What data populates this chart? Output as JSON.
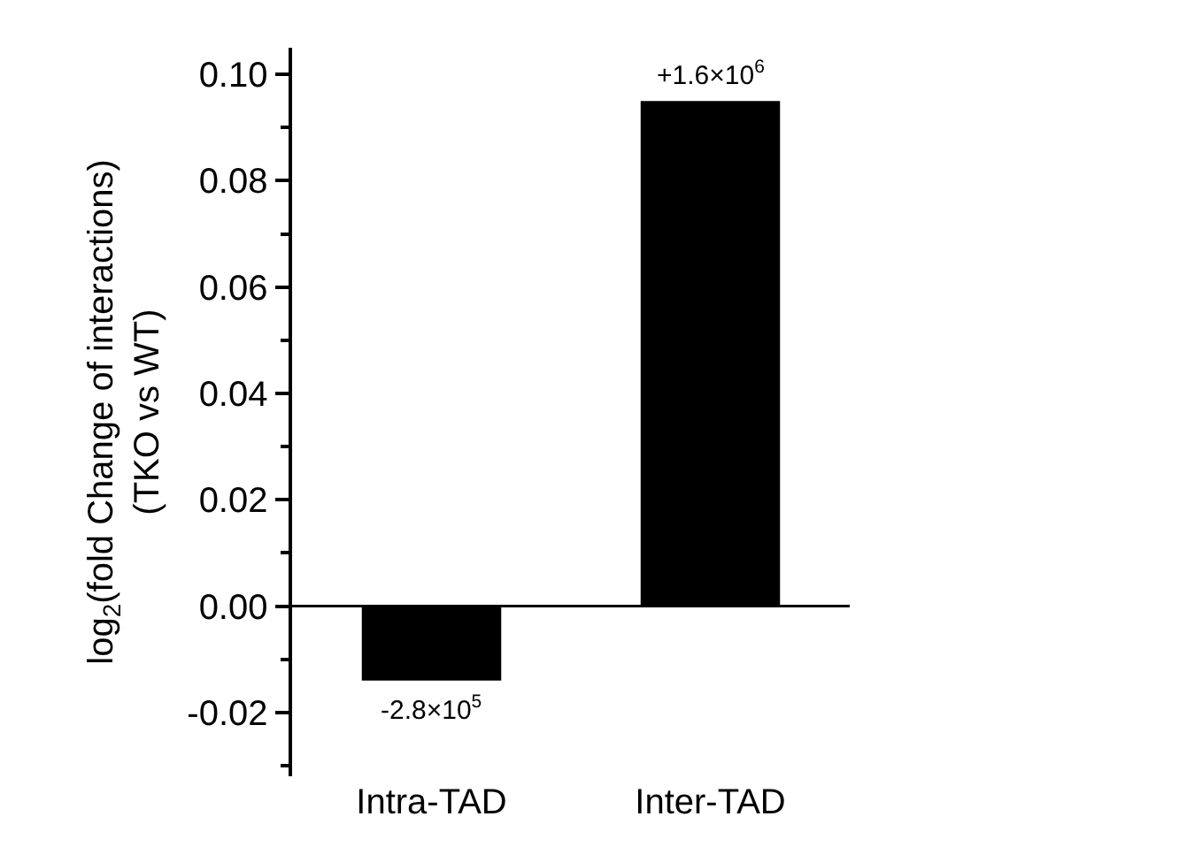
{
  "chart_data": {
    "type": "bar",
    "ylabel": "log$_{2}$(fold Change of interactions)\n(TKO vs WT)",
    "categories": [
      "Intra-TAD",
      "Inter-TAD"
    ],
    "values": [
      -0.014,
      0.095
    ],
    "annotations": [
      {
        "text": "-2.8×10$^{5}$",
        "x": "Intra-TAD",
        "y": -0.014
      },
      {
        "text": "+1.6×10$^{6}$",
        "x": "Inter-TAD",
        "y": 0.095
      }
    ],
    "color": "#000000",
    "ylim": [
      -0.032,
      0.105
    ],
    "yticks": [
      {
        "value": -0.02,
        "label": "-0.02"
      },
      {
        "value": 0,
        "label": "0.00"
      },
      {
        "value": 0.02,
        "label": "0.02"
      },
      {
        "value": 0.04,
        "label": "0.04"
      },
      {
        "value": 0.06,
        "label": "0.06"
      },
      {
        "value": 0.08,
        "label": "0.08"
      },
      {
        "value": 0.1,
        "label": "0.10"
      },
      {
        "value": -0.03,
        "label": null
      },
      {
        "value": -0.01,
        "label": null
      },
      {
        "value": 0.01,
        "label": null
      },
      {
        "value": 0.03,
        "label": null
      },
      {
        "value": 0.05,
        "label": null
      },
      {
        "value": 0.07,
        "label": null
      },
      {
        "value": 0.09,
        "label": null
      }
    ],
    "ref_lines": [
      {
        "axis": "y",
        "value": 0,
        "color": "#000000",
        "line_style": "solid"
      }
    ],
    "grid": false,
    "legend": false
  }
}
